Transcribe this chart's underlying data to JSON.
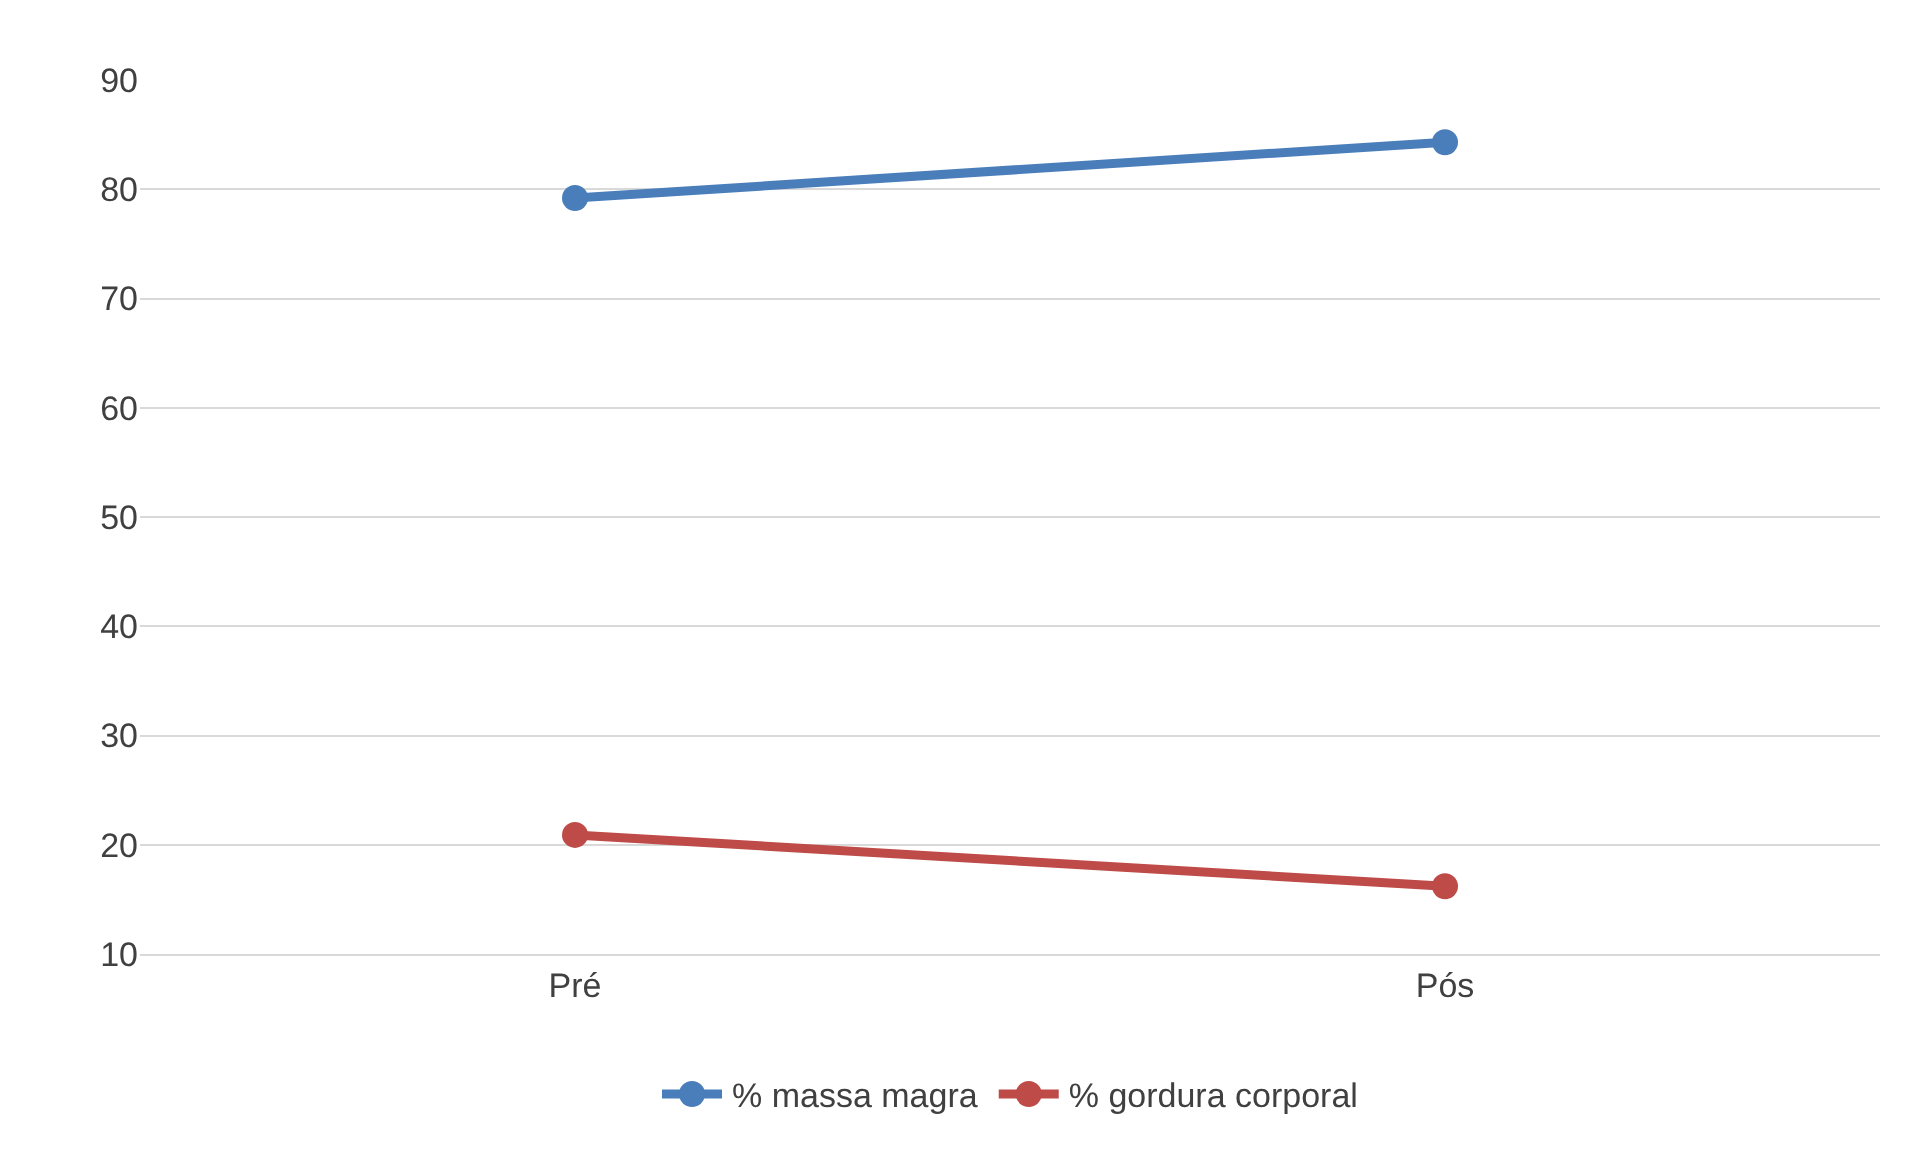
{
  "chart_data": {
    "type": "line",
    "categories": [
      "Pré",
      "Pós"
    ],
    "series": [
      {
        "name": "% massa magra",
        "color": "#4a7ebb",
        "values": [
          79.2,
          84.3
        ]
      },
      {
        "name": "% gordura corporal",
        "color": "#be4b48",
        "values": [
          20.9,
          16.2
        ]
      }
    ],
    "ylim": [
      10,
      90
    ],
    "yticks": [
      10,
      20,
      30,
      40,
      50,
      60,
      70,
      80,
      90
    ],
    "grid": "y",
    "legend": "bottom",
    "marker": "circle",
    "line_style": "solid"
  }
}
